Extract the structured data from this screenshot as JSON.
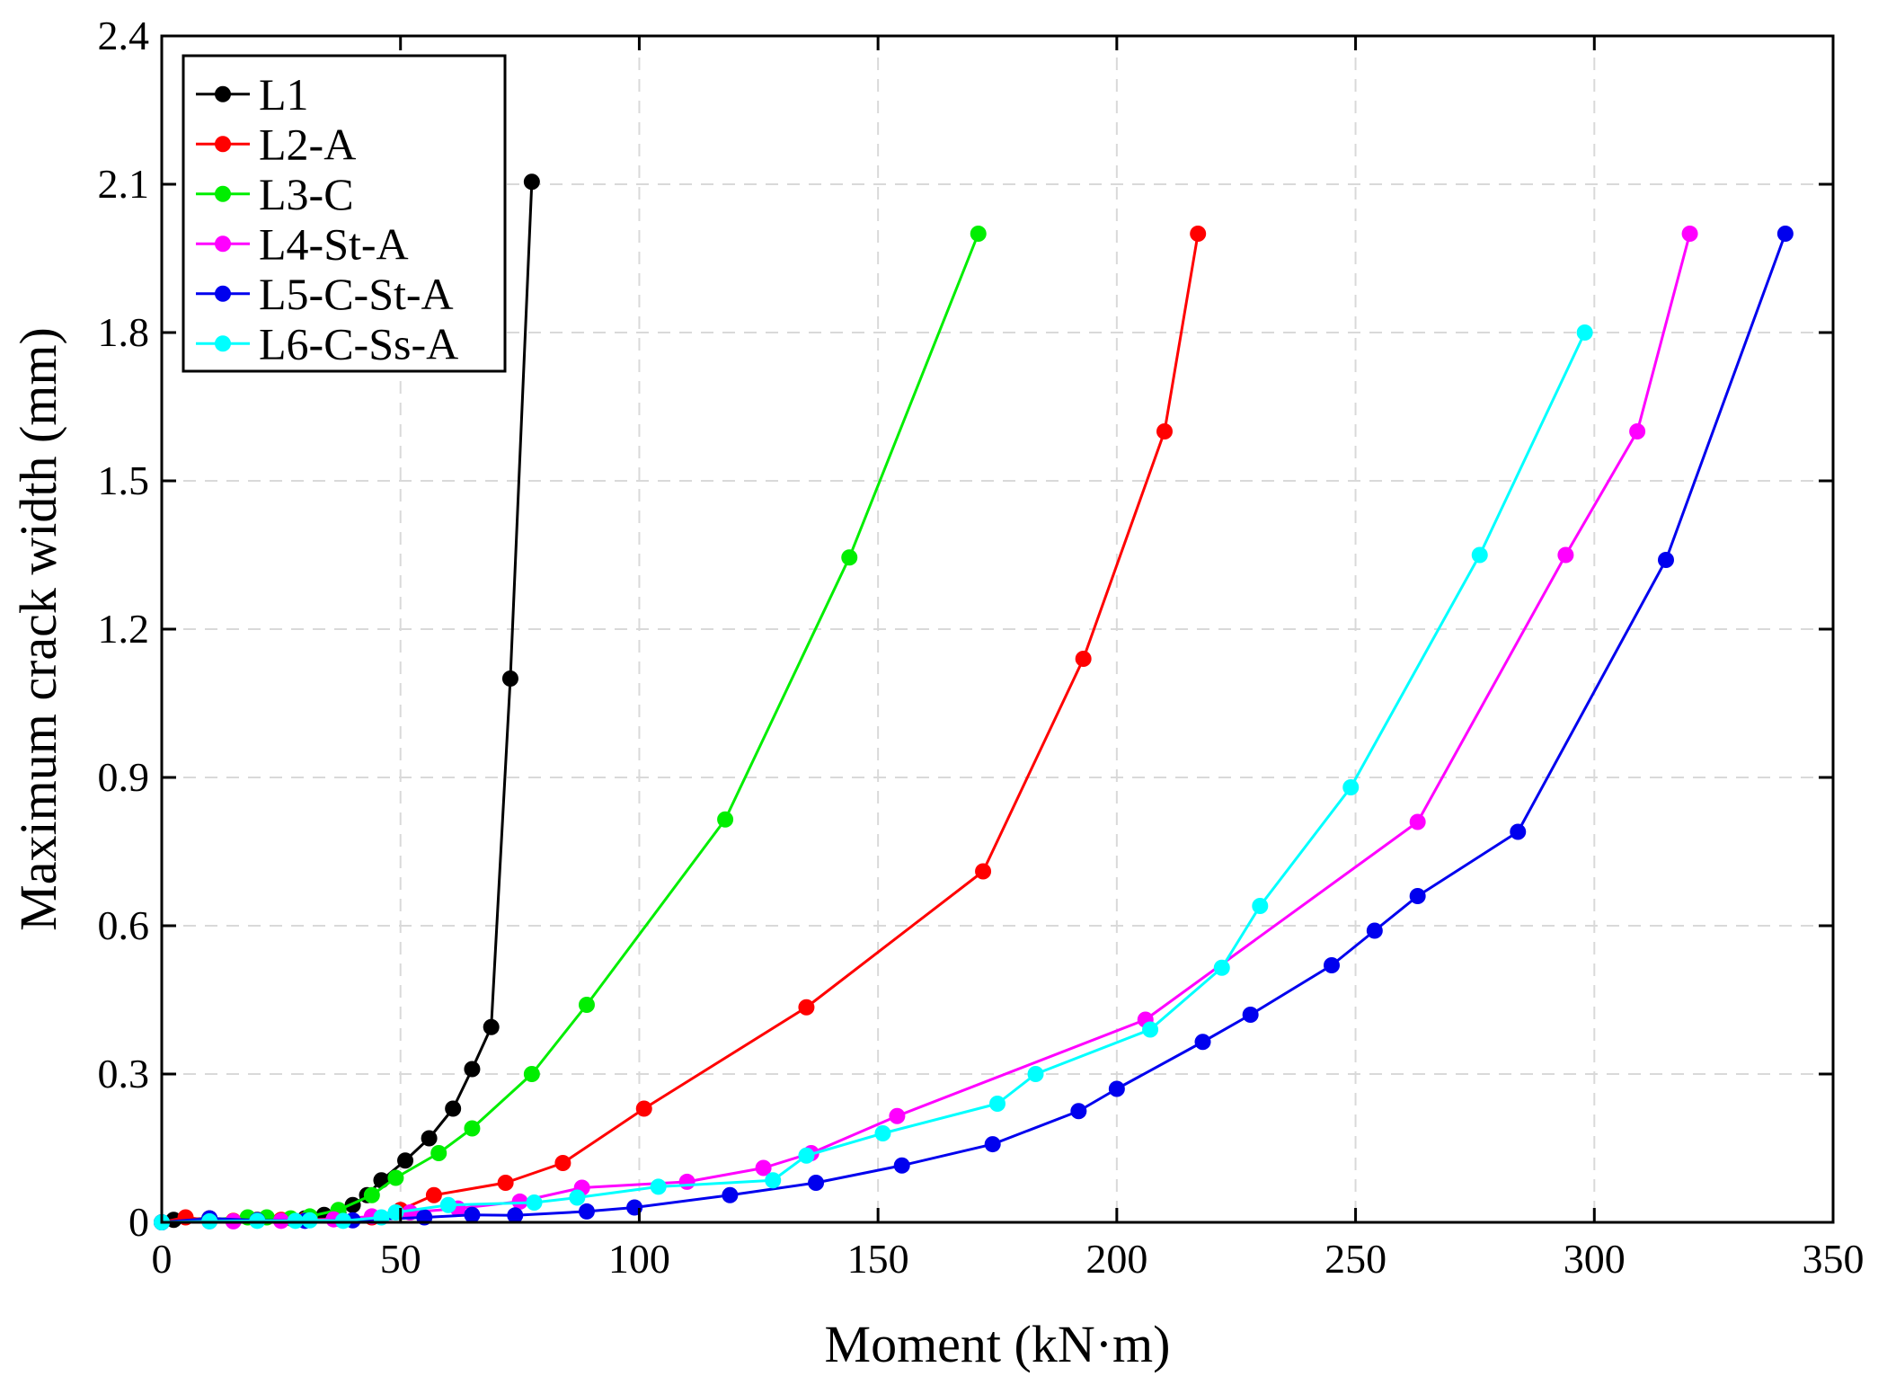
{
  "chart_data": {
    "type": "line",
    "title": "",
    "xlabel": "Moment (kN·m)",
    "ylabel": "Maximum crack width (mm)",
    "xlim": [
      0,
      350
    ],
    "ylim": [
      0,
      2.4
    ],
    "xticks": [
      0,
      50,
      100,
      150,
      200,
      250,
      300,
      350
    ],
    "yticks": [
      0,
      0.3,
      0.6,
      0.9,
      1.2,
      1.5,
      1.8,
      2.1,
      2.4
    ],
    "xtick_labels": [
      "0",
      "50",
      "100",
      "150",
      "200",
      "250",
      "300",
      "350"
    ],
    "ytick_labels": [
      "0",
      "0.3",
      "0.6",
      "0.9",
      "1.2",
      "1.5",
      "1.8",
      "2.1",
      "2.4"
    ],
    "grid": true,
    "legend_position": "top-left",
    "series": [
      {
        "name": "L1",
        "color": "#000000",
        "points": [
          [
            2.5,
            0.005
          ],
          [
            10,
            0.008
          ],
          [
            20,
            0.005
          ],
          [
            25,
            0.004
          ],
          [
            30,
            0.008
          ],
          [
            34,
            0.015
          ],
          [
            37,
            0.02
          ],
          [
            40,
            0.035
          ],
          [
            43,
            0.055
          ],
          [
            46,
            0.085
          ],
          [
            51,
            0.125
          ],
          [
            56,
            0.17
          ],
          [
            61,
            0.23
          ],
          [
            65,
            0.31
          ],
          [
            69,
            0.395
          ],
          [
            73,
            1.1
          ],
          [
            77.5,
            2.105
          ]
        ]
      },
      {
        "name": "L2-A",
        "color": "#ff0000",
        "points": [
          [
            0,
            0
          ],
          [
            5,
            0.01
          ],
          [
            10,
            0.004
          ],
          [
            15,
            0.003
          ],
          [
            20,
            0.004
          ],
          [
            25,
            0.005
          ],
          [
            30,
            0.005
          ],
          [
            37,
            0.007
          ],
          [
            44,
            0.01
          ],
          [
            50,
            0.025
          ],
          [
            57,
            0.055
          ],
          [
            72,
            0.08
          ],
          [
            84,
            0.12
          ],
          [
            101,
            0.23
          ],
          [
            135,
            0.435
          ],
          [
            172,
            0.71
          ],
          [
            193,
            1.14
          ],
          [
            210,
            1.6
          ],
          [
            217,
            2.0
          ]
        ]
      },
      {
        "name": "L3-C",
        "color": "#00ee00",
        "points": [
          [
            0,
            0
          ],
          [
            10,
            0.006
          ],
          [
            18,
            0.01
          ],
          [
            22,
            0.01
          ],
          [
            27,
            0.008
          ],
          [
            31,
            0.012
          ],
          [
            37,
            0.025
          ],
          [
            44,
            0.055
          ],
          [
            49,
            0.09
          ],
          [
            58,
            0.14
          ],
          [
            65,
            0.19
          ],
          [
            77.5,
            0.3
          ],
          [
            89,
            0.44
          ],
          [
            118,
            0.815
          ],
          [
            144,
            1.345
          ],
          [
            171,
            2.0
          ]
        ]
      },
      {
        "name": "L4-St-A",
        "color": "#ff00ff",
        "points": [
          [
            0,
            0
          ],
          [
            10,
            0.002
          ],
          [
            15,
            0.002
          ],
          [
            25,
            0.003
          ],
          [
            36,
            0.006
          ],
          [
            44,
            0.012
          ],
          [
            52,
            0.02
          ],
          [
            62,
            0.028
          ],
          [
            75,
            0.042
          ],
          [
            88,
            0.07
          ],
          [
            110,
            0.082
          ],
          [
            126,
            0.11
          ],
          [
            136,
            0.14
          ],
          [
            154,
            0.215
          ],
          [
            206,
            0.41
          ],
          [
            263,
            0.81
          ],
          [
            294,
            1.35
          ],
          [
            309,
            1.6
          ],
          [
            320,
            2.0
          ]
        ]
      },
      {
        "name": "L5-C-St-A",
        "color": "#0000ee",
        "points": [
          [
            0,
            0
          ],
          [
            10,
            0.008
          ],
          [
            20,
            0.004
          ],
          [
            30,
            0.003
          ],
          [
            40,
            0.004
          ],
          [
            55,
            0.01
          ],
          [
            65,
            0.015
          ],
          [
            74,
            0.014
          ],
          [
            89,
            0.022
          ],
          [
            99,
            0.03
          ],
          [
            119,
            0.055
          ],
          [
            137,
            0.08
          ],
          [
            155,
            0.115
          ],
          [
            174,
            0.158
          ],
          [
            192,
            0.225
          ],
          [
            200,
            0.27
          ],
          [
            218,
            0.365
          ],
          [
            228,
            0.42
          ],
          [
            245,
            0.52
          ],
          [
            254,
            0.59
          ],
          [
            263,
            0.66
          ],
          [
            284,
            0.79
          ],
          [
            315,
            1.34
          ],
          [
            340,
            2.0
          ]
        ]
      },
      {
        "name": "L6-C-Ss-A",
        "color": "#00ffff",
        "points": [
          [
            0,
            0
          ],
          [
            10,
            0.002
          ],
          [
            20,
            0.003
          ],
          [
            28,
            0.003
          ],
          [
            31,
            0.004
          ],
          [
            38,
            0.003
          ],
          [
            46,
            0.01
          ],
          [
            49,
            0.02
          ],
          [
            60,
            0.035
          ],
          [
            78,
            0.04
          ],
          [
            87,
            0.05
          ],
          [
            104,
            0.072
          ],
          [
            128,
            0.085
          ],
          [
            135,
            0.135
          ],
          [
            151,
            0.18
          ],
          [
            175,
            0.24
          ],
          [
            183,
            0.3
          ],
          [
            207,
            0.39
          ],
          [
            222,
            0.515
          ],
          [
            230,
            0.64
          ],
          [
            249,
            0.88
          ],
          [
            276,
            1.35
          ],
          [
            298,
            1.8
          ]
        ]
      }
    ]
  }
}
